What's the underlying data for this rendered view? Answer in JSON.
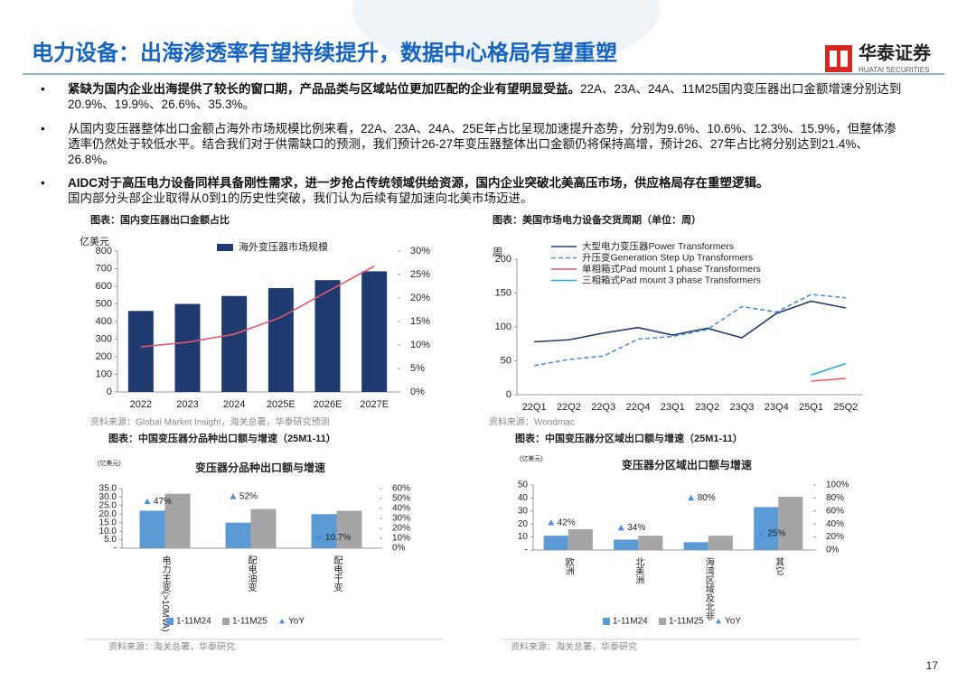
{
  "header": {
    "title": "电力设备：出海渗透率有望持续提升，数据中心格局有望重塑",
    "logo_cn": "华泰证券",
    "logo_en": "HUATAI SECURITIES"
  },
  "bullets": [
    {
      "bold": "紧缺为国内企业出海提供了较长的窗口期，产品品类与区域站位更加匹配的企业有望明显受益。",
      "text": "22A、23A、24A、11M25国内变压器出口金额增速分别达到20.9%、19.9%、26.6%、35.3%。"
    },
    {
      "text": "从国内变压器整体出口金额占海外市场规模比例来看，22A、23A、24A、25E年占比呈现加速提升态势，分别为9.6%、10.6%、12.3%、15.9%，但整体渗透率仍然处于较低水平。结合我们对于供需缺口的预测，我们预计26-27年变压器整体出口金额仍将保持高增，预计26、27年占比将分别达到21.4%、26.8%。"
    },
    {
      "bold": "AIDC对于高压电力设备同样具备刚性需求，进一步抢占传统领域供给资源，国内企业突破北美高压市场，供应格局存在重塑逻辑。",
      "text": "国内部分头部企业取得从0到1的历史性突破，我们认为后续有望加速向北美市场迈进。"
    }
  ],
  "chart_data": [
    {
      "type": "bar",
      "caption": "图表：国内变压器出口金额占比",
      "unit": "亿美元",
      "source": "资料来源：Global Market Insight，海关总署，华泰研究预测",
      "legend": "top",
      "categories": [
        "2022",
        "2023",
        "2024",
        "2025E",
        "2026E",
        "2027E"
      ],
      "series": [
        {
          "name": "海外变压器市场规模",
          "color": "#1f3a6e",
          "values": [
            460,
            500,
            545,
            590,
            635,
            685
          ]
        },
        {
          "type": "line",
          "axis": "y2",
          "color": "#e8556b",
          "values": [
            9.6,
            10.6,
            12.3,
            15.9,
            21.4,
            26.8
          ]
        }
      ],
      "ylim": [
        0,
        800
      ],
      "yticks": [
        0,
        100,
        200,
        300,
        400,
        500,
        600,
        700,
        800
      ],
      "y2lim": [
        0,
        30
      ],
      "y2ticks": [
        {
          "value": 0,
          "label": "0%"
        },
        {
          "value": 5,
          "label": "5%"
        },
        {
          "value": 10,
          "label": "10%"
        },
        {
          "value": 15,
          "label": "15%"
        },
        {
          "value": 20,
          "label": "20%"
        },
        {
          "value": 25,
          "label": "25%"
        },
        {
          "value": 30,
          "label": "30%"
        }
      ]
    },
    {
      "type": "line",
      "caption": "图表：美国市场电力设备交货周期（单位：周）",
      "unit": "周",
      "source": "资料来源：Woodmac",
      "legend": "top",
      "categories": [
        "22Q1",
        "22Q2",
        "22Q3",
        "22Q4",
        "23Q1",
        "23Q2",
        "23Q3",
        "23Q4",
        "25Q1",
        "25Q2"
      ],
      "series": [
        {
          "name": "大型电力变压器Power Transformers",
          "color": "#1f3a6e",
          "values": [
            78,
            81,
            91,
            99,
            88,
            98,
            84,
            120,
            138,
            128
          ]
        },
        {
          "name": "升压变Generation Step Up Transformers",
          "color": "#4a90d9",
          "style": "dashed",
          "values": [
            43,
            52,
            57,
            82,
            86,
            96,
            130,
            122,
            148,
            143
          ]
        },
        {
          "name": "单相箱式Pad mount 1 phase Transformers",
          "color": "#e8556b",
          "values": [
            null,
            null,
            null,
            null,
            null,
            null,
            null,
            null,
            20,
            24
          ]
        },
        {
          "name": "三相箱式Pad mount 3 phase Transformers",
          "color": "#1ab0e0",
          "values": [
            null,
            null,
            null,
            null,
            null,
            null,
            null,
            null,
            29,
            46
          ]
        }
      ],
      "ylim": [
        0,
        200
      ],
      "yticks": [
        0,
        50,
        100,
        150,
        200
      ]
    },
    {
      "type": "bar",
      "caption": "图表：中国变压器分品种出口额与增速（25M1-11）",
      "title": "变压器分品种出口额与增速",
      "unit": "(亿美元)",
      "source": "资料来源：海关总署，华泰研究",
      "legend": "bottom",
      "categories": [
        "电力主变(>10MVA)",
        "配电油变",
        "配电干变"
      ],
      "series": [
        {
          "name": "1-11M24",
          "color": "#5b9bd5",
          "values": [
            22,
            15,
            20
          ]
        },
        {
          "name": "1-11M25",
          "color": "#a5a5a5",
          "values": [
            32,
            23,
            22
          ]
        },
        {
          "name": "YoY",
          "type": "scatter",
          "axis": "y2",
          "color": "#4a90d9",
          "values": [
            47,
            52,
            10.7
          ],
          "value_labels": [
            "47%",
            "52%",
            "10.7%"
          ]
        }
      ],
      "ylim": [
        0,
        35
      ],
      "yticks": [
        {
          "value": 0,
          "label": "-"
        },
        {
          "value": 5,
          "label": "5.0"
        },
        {
          "value": 10,
          "label": "10.0"
        },
        {
          "value": 15,
          "label": "15.0"
        },
        {
          "value": 20,
          "label": "20.0"
        },
        {
          "value": 25,
          "label": "25.0"
        },
        {
          "value": 30,
          "label": "30.0"
        },
        {
          "value": 35,
          "label": "35.0"
        }
      ],
      "y2lim": [
        0,
        60
      ],
      "y2ticks": [
        {
          "value": 0,
          "label": "0%"
        },
        {
          "value": 10,
          "label": "10%"
        },
        {
          "value": 20,
          "label": "20%"
        },
        {
          "value": 30,
          "label": "30%"
        },
        {
          "value": 40,
          "label": "40%"
        },
        {
          "value": 50,
          "label": "50%"
        },
        {
          "value": 60,
          "label": "60%"
        }
      ]
    },
    {
      "type": "bar",
      "caption": "图表：中国变压器分区域出口额与增速（25M1-11）",
      "title": "变压器分区域出口额与增速",
      "unit": "(亿美元)",
      "source": "资料来源：海关总署，华泰研究",
      "legend": "bottom",
      "categories": [
        "欧洲",
        "北美洲",
        "海湾区域及北非",
        "其它"
      ],
      "series": [
        {
          "name": "1-11M24",
          "color": "#5b9bd5",
          "values": [
            11,
            8,
            6,
            33
          ]
        },
        {
          "name": "1-11M25",
          "color": "#a5a5a5",
          "values": [
            16,
            11,
            11,
            41
          ]
        },
        {
          "name": "YoY",
          "type": "scatter",
          "axis": "y2",
          "color": "#4a90d9",
          "values": [
            42,
            34,
            80,
            25
          ],
          "value_labels": [
            "42%",
            "34%",
            "80%",
            "25%"
          ]
        }
      ],
      "ylim": [
        0,
        50
      ],
      "yticks": [
        {
          "value": 0,
          "label": "-"
        },
        10,
        20,
        30,
        40,
        50
      ],
      "y2lim": [
        0,
        100
      ],
      "y2ticks": [
        {
          "value": 0,
          "label": "0%"
        },
        {
          "value": 20,
          "label": "20%"
        },
        {
          "value": 40,
          "label": "40%"
        },
        {
          "value": 60,
          "label": "60%"
        },
        {
          "value": 80,
          "label": "80%"
        },
        {
          "value": 100,
          "label": "100%"
        }
      ]
    }
  ],
  "page_number": "17"
}
